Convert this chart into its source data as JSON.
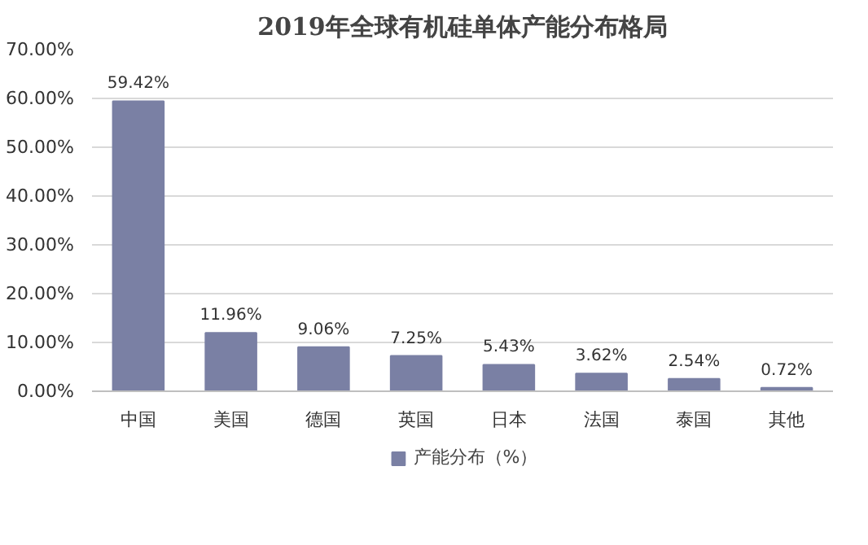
{
  "chart_data": {
    "type": "bar",
    "title": "2019年全球有机硅单体产能分布格局",
    "categories": [
      "中国",
      "美国",
      "德国",
      "英国",
      "日本",
      "法国",
      "泰国",
      "其他"
    ],
    "series": [
      {
        "name": "产能分布（%）",
        "color": "#7a80a4",
        "values": [
          59.42,
          11.96,
          9.06,
          7.25,
          5.43,
          3.62,
          2.54,
          0.72
        ],
        "value_labels": [
          "59.42%",
          "11.96%",
          "9.06%",
          "7.25%",
          "5.43%",
          "3.62%",
          "2.54%",
          "0.72%"
        ]
      }
    ],
    "ylim": [
      0,
      70
    ],
    "yticks": [
      {
        "value": 0,
        "label": "0.00%"
      },
      {
        "value": 10,
        "label": "10.00%"
      },
      {
        "value": 20,
        "label": "20.00%"
      },
      {
        "value": 30,
        "label": "30.00%"
      },
      {
        "value": 40,
        "label": "40.00%"
      },
      {
        "value": 50,
        "label": "50.00%"
      },
      {
        "value": 60,
        "label": "60.00%"
      },
      {
        "value": 70,
        "label": "70.00%"
      }
    ],
    "grid": "y",
    "legend": "bottom"
  }
}
